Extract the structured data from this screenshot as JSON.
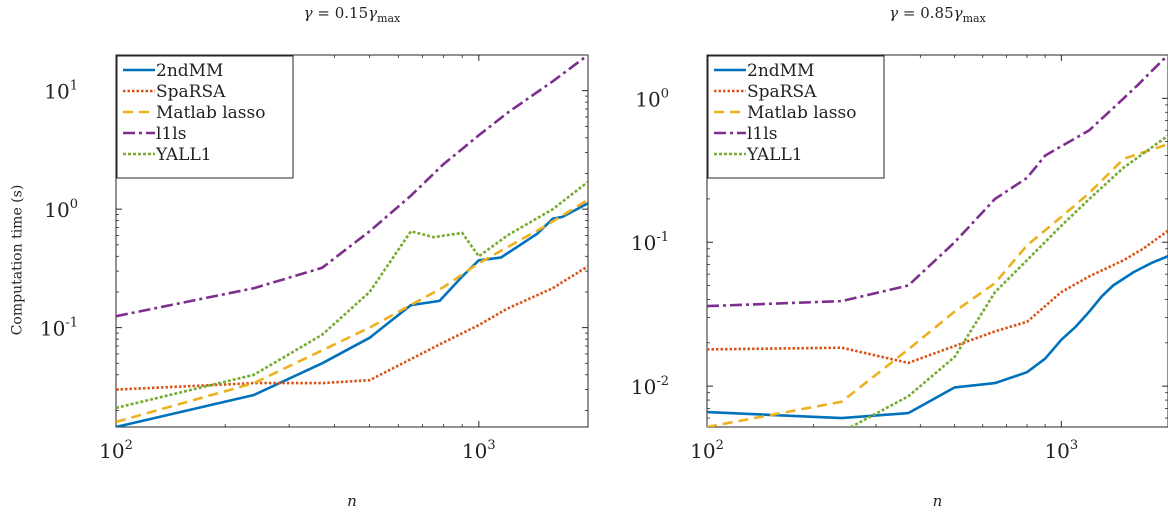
{
  "ylabel": "Computation time (s)",
  "legend_labels": [
    "2ndMM",
    "SpaRSA",
    "Matlab lasso",
    "l1ls",
    "YALL1"
  ],
  "series_styles": {
    "2ndMM": {
      "color": "#0072BD",
      "dash": ""
    },
    "SpaRSA": {
      "color": "#D95319",
      "dash": "2.5 2"
    },
    "Matlab lasso": {
      "color": "#EDB120",
      "dash": "10 6"
    },
    "l1ls": {
      "color": "#7E2F8E",
      "dash": "12 4 3 4"
    },
    "YALL1": {
      "color": "#77AC30",
      "dash": "3 2"
    }
  },
  "chart_data": [
    {
      "type": "line",
      "title_sym": "γ",
      "title_eq": "=",
      "title_val": "0.15γ",
      "title_sub": "max",
      "xlabel": "n",
      "xscale": "log",
      "yscale": "log",
      "xlim": [
        100,
        2000
      ],
      "ylim": [
        0.0145,
        20
      ],
      "xticks": [
        {
          "v": 100,
          "b": "10",
          "e": "2"
        },
        {
          "v": 1000,
          "b": "10",
          "e": "3"
        }
      ],
      "yticks": [
        {
          "v": 10,
          "b": "10",
          "e": "1"
        },
        {
          "v": 1,
          "b": "10",
          "e": "0"
        },
        {
          "v": 0.1,
          "b": "10",
          "e": "-1"
        }
      ],
      "legend_position": "top-left",
      "series": [
        {
          "name": "2ndMM",
          "points": [
            [
              100,
              0.0145
            ],
            [
              240,
              0.027
            ],
            [
              370,
              0.05
            ],
            [
              500,
              0.082
            ],
            [
              650,
              0.155
            ],
            [
              780,
              0.168
            ],
            [
              900,
              0.27
            ],
            [
              1000,
              0.37
            ],
            [
              1150,
              0.39
            ],
            [
              1450,
              0.62
            ],
            [
              1600,
              0.83
            ],
            [
              1700,
              0.86
            ],
            [
              2000,
              1.12
            ]
          ]
        },
        {
          "name": "SpaRSA",
          "points": [
            [
              100,
              0.03
            ],
            [
              240,
              0.034
            ],
            [
              370,
              0.034
            ],
            [
              500,
              0.036
            ],
            [
              800,
              0.075
            ],
            [
              1000,
              0.105
            ],
            [
              1200,
              0.145
            ],
            [
              1600,
              0.215
            ],
            [
              2000,
              0.33
            ]
          ]
        },
        {
          "name": "Matlab lasso",
          "points": [
            [
              100,
              0.016
            ],
            [
              240,
              0.034
            ],
            [
              500,
              0.1
            ],
            [
              800,
              0.22
            ],
            [
              1000,
              0.35
            ],
            [
              1500,
              0.7
            ],
            [
              2000,
              1.2
            ]
          ]
        },
        {
          "name": "l1ls",
          "points": [
            [
              100,
              0.125
            ],
            [
              240,
              0.215
            ],
            [
              370,
              0.32
            ],
            [
              500,
              0.65
            ],
            [
              650,
              1.3
            ],
            [
              800,
              2.4
            ],
            [
              1000,
              4.2
            ],
            [
              1200,
              6.5
            ],
            [
              1600,
              12
            ],
            [
              2000,
              20
            ]
          ]
        },
        {
          "name": "YALL1",
          "points": [
            [
              100,
              0.021
            ],
            [
              240,
              0.04
            ],
            [
              370,
              0.087
            ],
            [
              500,
              0.2
            ],
            [
              650,
              0.65
            ],
            [
              750,
              0.58
            ],
            [
              900,
              0.63
            ],
            [
              1000,
              0.4
            ],
            [
              1200,
              0.6
            ],
            [
              1600,
              1.0
            ],
            [
              2000,
              1.7
            ]
          ]
        }
      ]
    },
    {
      "type": "line",
      "title_sym": "γ",
      "title_eq": "=",
      "title_val": "0.85γ",
      "title_sub": "max",
      "xlabel": "n",
      "xscale": "log",
      "yscale": "log",
      "xlim": [
        100,
        2000
      ],
      "ylim": [
        0.0052,
        2.0
      ],
      "xticks": [
        {
          "v": 100,
          "b": "10",
          "e": "2"
        },
        {
          "v": 1000,
          "b": "10",
          "e": "3"
        }
      ],
      "yticks": [
        {
          "v": 1,
          "b": "10",
          "e": "0"
        },
        {
          "v": 0.1,
          "b": "10",
          "e": "-1"
        },
        {
          "v": 0.01,
          "b": "10",
          "e": "-2"
        }
      ],
      "legend_position": "top-left",
      "series": [
        {
          "name": "2ndMM",
          "points": [
            [
              100,
              0.0066
            ],
            [
              240,
              0.006
            ],
            [
              370,
              0.0065
            ],
            [
              500,
              0.0098
            ],
            [
              650,
              0.0105
            ],
            [
              800,
              0.0125
            ],
            [
              900,
              0.0155
            ],
            [
              1000,
              0.021
            ],
            [
              1100,
              0.026
            ],
            [
              1200,
              0.033
            ],
            [
              1300,
              0.042
            ],
            [
              1400,
              0.05
            ],
            [
              1600,
              0.062
            ],
            [
              1800,
              0.072
            ],
            [
              2000,
              0.08
            ]
          ]
        },
        {
          "name": "SpaRSA",
          "points": [
            [
              100,
              0.018
            ],
            [
              240,
              0.0185
            ],
            [
              370,
              0.0145
            ],
            [
              500,
              0.019
            ],
            [
              650,
              0.024
            ],
            [
              800,
              0.028
            ],
            [
              1000,
              0.045
            ],
            [
              1200,
              0.058
            ],
            [
              1500,
              0.075
            ],
            [
              1700,
              0.09
            ],
            [
              2000,
              0.12
            ]
          ]
        },
        {
          "name": "Matlab lasso",
          "points": [
            [
              100,
              0.0052
            ],
            [
              240,
              0.0078
            ],
            [
              370,
              0.018
            ],
            [
              500,
              0.033
            ],
            [
              650,
              0.052
            ],
            [
              800,
              0.095
            ],
            [
              1000,
              0.15
            ],
            [
              1200,
              0.22
            ],
            [
              1500,
              0.38
            ],
            [
              2000,
              0.48
            ]
          ]
        },
        {
          "name": "l1ls",
          "points": [
            [
              100,
              0.036
            ],
            [
              240,
              0.039
            ],
            [
              370,
              0.05
            ],
            [
              500,
              0.1
            ],
            [
              650,
              0.2
            ],
            [
              800,
              0.28
            ],
            [
              900,
              0.4
            ],
            [
              1200,
              0.6
            ],
            [
              1500,
              1.0
            ],
            [
              1650,
              1.25
            ],
            [
              1800,
              1.55
            ],
            [
              2000,
              2.0
            ]
          ]
        },
        {
          "name": "YALL1",
          "points": [
            [
              100,
              0.0048
            ],
            [
              240,
              0.0048
            ],
            [
              370,
              0.0085
            ],
            [
              500,
              0.016
            ],
            [
              650,
              0.045
            ],
            [
              800,
              0.075
            ],
            [
              1000,
              0.13
            ],
            [
              1200,
              0.2
            ],
            [
              1500,
              0.33
            ],
            [
              2000,
              0.55
            ]
          ]
        }
      ]
    }
  ]
}
